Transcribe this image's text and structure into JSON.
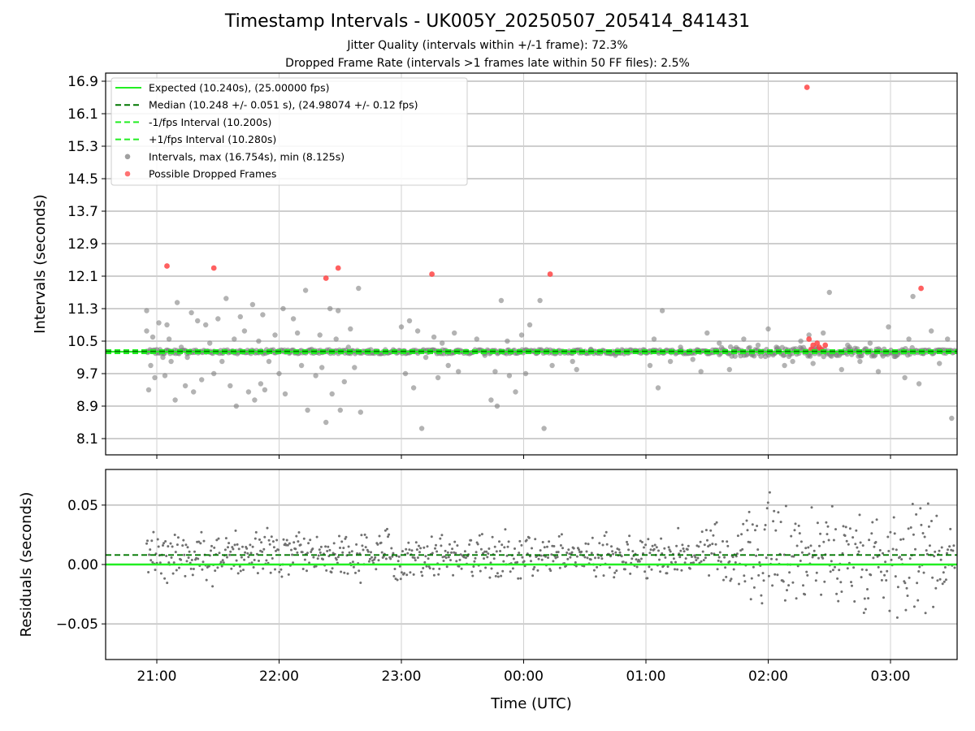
{
  "chart_data": [
    {
      "type": "scatter",
      "title": "Timestamp Intervals - UK005Y_20250507_205414_841431",
      "subtitle_1": "Jitter Quality (intervals within +/-1 frame): 72.3%",
      "subtitle_2": "Dropped Frame Rate (intervals >1 frames late within 50 FF files): 2.5%",
      "ylabel": "Intervals (seconds)",
      "ylim": [
        7.7,
        17.1
      ],
      "yticks": [
        "8.1",
        "8.9",
        "9.7",
        "10.5",
        "11.3",
        "12.1",
        "12.9",
        "13.7",
        "14.5",
        "15.3",
        "16.1",
        "16.9"
      ],
      "grid": true,
      "legend_position": "top-left",
      "legend": [
        {
          "label": "Expected (10.240s), (25.00000 fps)",
          "style": "solid",
          "color": "#22ee22"
        },
        {
          "label": "Median (10.248 +/- 0.051 s), (24.98074 +/- 0.12 fps)",
          "style": "dashed",
          "color": "#007700"
        },
        {
          "label": "-1/fps Interval (10.200s)",
          "style": "dashed",
          "color": "#22ee22"
        },
        {
          "label": "+1/fps Interval (10.280s)",
          "style": "dashed",
          "color": "#22ee22"
        },
        {
          "label": "Intervals, max (16.754s), min (8.125s)",
          "style": "marker",
          "color": "#808080"
        },
        {
          "label": "Possible Dropped Frames",
          "style": "marker",
          "color": "#ff4444"
        }
      ],
      "reference_lines": {
        "expected": 10.24,
        "median": 10.248,
        "minus_one_frame": 10.2,
        "plus_one_frame": 10.28
      },
      "series": [
        {
          "name": "Intervals",
          "color": "#808080",
          "points": [
            [
              "20:55",
              10.75
            ],
            [
              "20:55",
              11.25
            ],
            [
              "20:56",
              9.3
            ],
            [
              "20:57",
              9.9
            ],
            [
              "20:58",
              10.6
            ],
            [
              "20:59",
              9.6
            ],
            [
              "21:01",
              10.95
            ],
            [
              "21:03",
              10.1
            ],
            [
              "21:04",
              9.65
            ],
            [
              "21:05",
              10.9
            ],
            [
              "21:06",
              10.55
            ],
            [
              "21:07",
              10.0
            ],
            [
              "21:09",
              9.05
            ],
            [
              "21:10",
              11.45
            ],
            [
              "21:12",
              10.35
            ],
            [
              "21:14",
              9.4
            ],
            [
              "21:15",
              10.1
            ],
            [
              "21:17",
              11.2
            ],
            [
              "21:18",
              9.25
            ],
            [
              "21:20",
              11.0
            ],
            [
              "21:22",
              9.55
            ],
            [
              "21:24",
              10.9
            ],
            [
              "21:26",
              10.45
            ],
            [
              "21:28",
              9.7
            ],
            [
              "21:30",
              11.05
            ],
            [
              "21:32",
              10.0
            ],
            [
              "21:34",
              11.55
            ],
            [
              "21:36",
              9.4
            ],
            [
              "21:38",
              10.55
            ],
            [
              "21:39",
              8.9
            ],
            [
              "21:41",
              11.1
            ],
            [
              "21:43",
              10.75
            ],
            [
              "21:45",
              9.25
            ],
            [
              "21:47",
              11.4
            ],
            [
              "21:48",
              9.05
            ],
            [
              "21:50",
              10.5
            ],
            [
              "21:51",
              9.45
            ],
            [
              "21:52",
              11.15
            ],
            [
              "21:53",
              9.3
            ],
            [
              "21:55",
              10.0
            ],
            [
              "21:58",
              10.65
            ],
            [
              "22:00",
              9.7
            ],
            [
              "22:02",
              11.3
            ],
            [
              "22:03",
              9.2
            ],
            [
              "22:05",
              10.2
            ],
            [
              "22:07",
              11.05
            ],
            [
              "22:09",
              10.7
            ],
            [
              "22:11",
              9.9
            ],
            [
              "22:13",
              11.75
            ],
            [
              "22:14",
              8.8
            ],
            [
              "22:16",
              10.3
            ],
            [
              "22:18",
              9.65
            ],
            [
              "22:20",
              10.65
            ],
            [
              "22:21",
              9.85
            ],
            [
              "22:23",
              8.5
            ],
            [
              "22:25",
              11.3
            ],
            [
              "22:26",
              9.2
            ],
            [
              "22:28",
              10.55
            ],
            [
              "22:29",
              11.25
            ],
            [
              "22:30",
              8.8
            ],
            [
              "22:32",
              9.5
            ],
            [
              "22:34",
              10.35
            ],
            [
              "22:35",
              10.8
            ],
            [
              "22:37",
              9.85
            ],
            [
              "22:39",
              11.8
            ],
            [
              "22:40",
              8.75
            ],
            [
              "23:00",
              10.85
            ],
            [
              "23:02",
              9.7
            ],
            [
              "23:04",
              11.0
            ],
            [
              "23:06",
              9.35
            ],
            [
              "23:08",
              10.75
            ],
            [
              "23:10",
              8.35
            ],
            [
              "23:12",
              10.1
            ],
            [
              "23:16",
              10.6
            ],
            [
              "23:18",
              9.6
            ],
            [
              "23:20",
              10.45
            ],
            [
              "23:23",
              9.9
            ],
            [
              "23:26",
              10.7
            ],
            [
              "23:28",
              9.75
            ],
            [
              "23:32",
              10.25
            ],
            [
              "23:37",
              10.55
            ],
            [
              "23:41",
              10.15
            ],
            [
              "23:44",
              9.05
            ],
            [
              "23:46",
              9.75
            ],
            [
              "23:47",
              8.9
            ],
            [
              "23:49",
              11.5
            ],
            [
              "23:52",
              10.5
            ],
            [
              "23:53",
              9.65
            ],
            [
              "23:56",
              9.25
            ],
            [
              "23:59",
              10.65
            ],
            [
              "00:01",
              9.7
            ],
            [
              "00:03",
              10.9
            ],
            [
              "00:06",
              10.2
            ],
            [
              "00:08",
              11.5
            ],
            [
              "00:10",
              8.35
            ],
            [
              "00:14",
              9.9
            ],
            [
              "00:24",
              10.0
            ],
            [
              "00:26",
              9.8
            ],
            [
              "00:33",
              10.3
            ],
            [
              "00:45",
              10.15
            ],
            [
              "01:02",
              9.9
            ],
            [
              "01:04",
              10.55
            ],
            [
              "01:06",
              9.35
            ],
            [
              "01:08",
              11.25
            ],
            [
              "01:12",
              10.0
            ],
            [
              "01:17",
              10.35
            ],
            [
              "01:23",
              10.05
            ],
            [
              "01:27",
              9.75
            ],
            [
              "01:30",
              10.7
            ],
            [
              "01:36",
              10.45
            ],
            [
              "01:41",
              9.8
            ],
            [
              "01:48",
              10.55
            ],
            [
              "01:55",
              10.4
            ],
            [
              "02:00",
              10.8
            ],
            [
              "02:04",
              10.35
            ],
            [
              "02:08",
              9.9
            ],
            [
              "02:12",
              10.0
            ],
            [
              "02:16",
              10.5
            ],
            [
              "02:20",
              10.65
            ],
            [
              "02:22",
              9.95
            ],
            [
              "02:24",
              10.25
            ],
            [
              "02:27",
              10.7
            ],
            [
              "02:30",
              11.7
            ],
            [
              "02:36",
              9.8
            ],
            [
              "02:39",
              10.4
            ],
            [
              "02:45",
              10.0
            ],
            [
              "02:50",
              10.45
            ],
            [
              "02:54",
              9.75
            ],
            [
              "02:59",
              10.85
            ],
            [
              "03:03",
              10.15
            ],
            [
              "03:07",
              9.6
            ],
            [
              "03:09",
              10.55
            ],
            [
              "03:11",
              11.6
            ],
            [
              "03:14",
              9.45
            ],
            [
              "03:16",
              10.2
            ],
            [
              "03:20",
              10.75
            ],
            [
              "03:24",
              9.95
            ],
            [
              "03:28",
              10.55
            ],
            [
              "03:30",
              8.6
            ],
            [
              "03:33",
              11.1
            ],
            [
              "03:36",
              10.0
            ],
            [
              "03:42",
              11.5
            ],
            [
              "03:45",
              9.7
            ],
            [
              "03:47",
              10.5
            ]
          ]
        },
        {
          "name": "Possible Dropped Frames",
          "color": "#ff4444",
          "points": [
            [
              "21:05",
              12.35
            ],
            [
              "21:28",
              12.3
            ],
            [
              "22:23",
              12.05
            ],
            [
              "22:29",
              12.3
            ],
            [
              "23:15",
              12.15
            ],
            [
              "00:13",
              12.15
            ],
            [
              "02:19",
              16.75
            ],
            [
              "02:20",
              10.55
            ],
            [
              "02:21",
              10.3
            ],
            [
              "02:22",
              10.4
            ],
            [
              "02:23",
              10.25
            ],
            [
              "02:24",
              10.45
            ],
            [
              "02:25",
              10.35
            ],
            [
              "02:26",
              10.3
            ],
            [
              "02:28",
              10.4
            ],
            [
              "03:15",
              11.8
            ]
          ]
        }
      ]
    },
    {
      "type": "scatter",
      "xlabel": "Time (UTC)",
      "ylabel": "Residuals (seconds)",
      "ylim": [
        -0.08,
        0.08
      ],
      "yticks": [
        "0.05",
        "0.00",
        "−0.05"
      ],
      "xticks": [
        "21:00",
        "22:00",
        "23:00",
        "00:00",
        "01:00",
        "02:00",
        "03:00"
      ],
      "grid": true,
      "reference_lines": {
        "zero": 0.0,
        "median_offset": 0.008
      },
      "series": [
        {
          "name": "Residuals",
          "color": "#707070",
          "note_range": "approx -0.08 to 0.08"
        }
      ]
    }
  ]
}
